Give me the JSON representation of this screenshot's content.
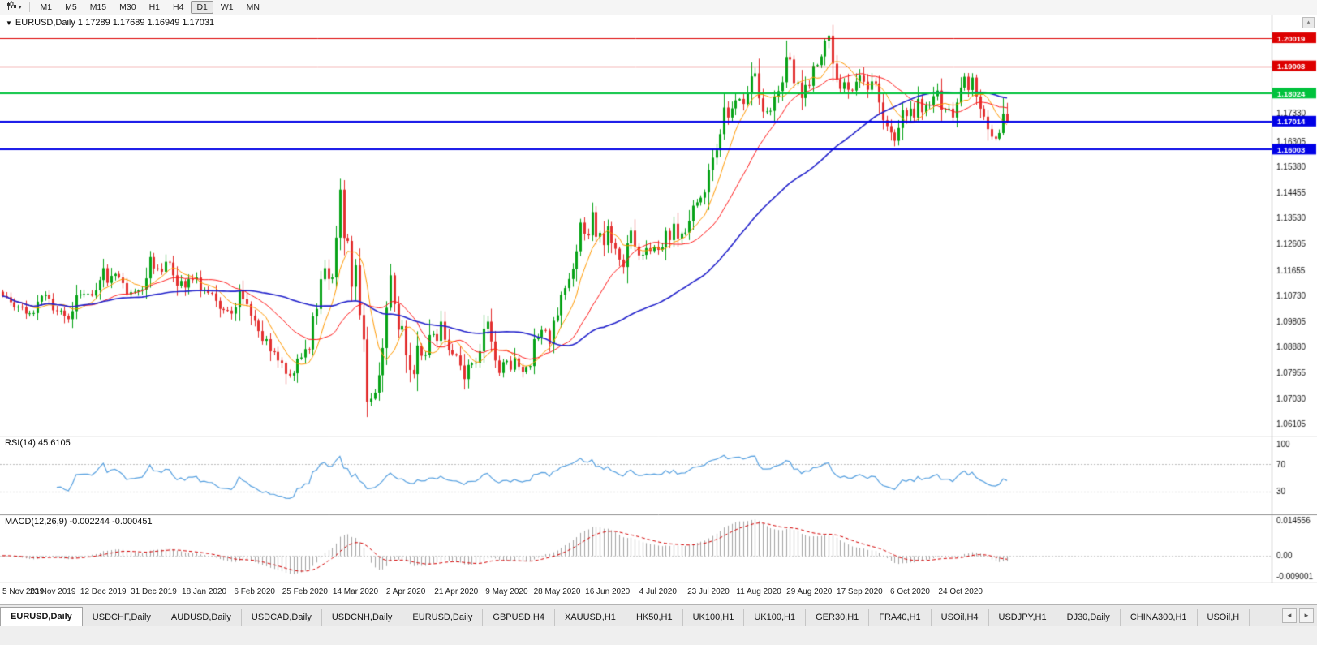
{
  "toolbar": {
    "chart_type_icon": "candlestick-chart-icon",
    "dropdown_glyph": "▾",
    "timeframes": [
      {
        "label": "M1",
        "active": false
      },
      {
        "label": "M5",
        "active": false
      },
      {
        "label": "M15",
        "active": false
      },
      {
        "label": "M30",
        "active": false
      },
      {
        "label": "H1",
        "active": false
      },
      {
        "label": "H4",
        "active": false
      },
      {
        "label": "D1",
        "active": true
      },
      {
        "label": "W1",
        "active": false
      },
      {
        "label": "MN",
        "active": false
      }
    ]
  },
  "main_chart": {
    "collapse_glyph": "▼",
    "title_line": "EURUSD,Daily 1.17289 1.17689 1.16949 1.17031",
    "scroll_glyph": "▴"
  },
  "rsi_panel": {
    "label": "RSI(14) 45.6105"
  },
  "macd_panel": {
    "label": "MACD(12,26,9) -0.002244 -0.000451"
  },
  "tabs": {
    "scroll_left_glyph": "◄",
    "scroll_right_glyph": "►",
    "items": [
      {
        "label": "EURUSD,Daily",
        "active": true
      },
      {
        "label": "USDCHF,Daily",
        "active": false
      },
      {
        "label": "AUDUSD,Daily",
        "active": false
      },
      {
        "label": "USDCAD,Daily",
        "active": false
      },
      {
        "label": "USDCNH,Daily",
        "active": false
      },
      {
        "label": "EURUSD,Daily",
        "active": false
      },
      {
        "label": "GBPUSD,H4",
        "active": false
      },
      {
        "label": "XAUUSD,H1",
        "active": false
      },
      {
        "label": "HK50,H1",
        "active": false
      },
      {
        "label": "UK100,H1",
        "active": false
      },
      {
        "label": "UK100,H1",
        "active": false
      },
      {
        "label": "GER30,H1",
        "active": false
      },
      {
        "label": "FRA40,H1",
        "active": false
      },
      {
        "label": "USOil,H4",
        "active": false
      },
      {
        "label": "USDJPY,H1",
        "active": false
      },
      {
        "label": "DJ30,Daily",
        "active": false
      },
      {
        "label": "CHINA300,H1",
        "active": false
      },
      {
        "label": "USOil,H",
        "active": false
      }
    ]
  },
  "chart_data": {
    "type": "candlestick",
    "symbol": "EURUSD",
    "timeframe": "Daily",
    "ohlc_display": {
      "open": "1.17289",
      "high": "1.17689",
      "low": "1.16949",
      "close": "1.17031"
    },
    "ylim": [
      1.0569,
      1.2084
    ],
    "bar_start_x": 3,
    "bar_spacing": 4.78,
    "bars_per_label": 13,
    "x_labels": [
      "5 Nov 2019",
      "23 Nov 2019",
      "12 Dec 2019",
      "31 Dec 2019",
      "18 Jan 2020",
      "6 Feb 2020",
      "25 Feb 2020",
      "14 Mar 2020",
      "2 Apr 2020",
      "21 Apr 2020",
      "9 May 2020",
      "28 May 2020",
      "16 Jun 2020",
      "4 Jul 2020",
      "23 Jul 2020",
      "11 Aug 2020",
      "29 Aug 2020",
      "17 Sep 2020",
      "6 Oct 2020",
      "24 Oct 2020"
    ],
    "closes": [
      1.1072,
      1.1068,
      1.105,
      1.1032,
      1.1034,
      1.1032,
      1.1009,
      1.101,
      1.1011,
      1.1052,
      1.1073,
      1.1077,
      1.1063,
      1.1021,
      1.1018,
      1.102,
      1.1001,
      1.0989,
      1.1018,
      1.1075,
      1.1078,
      1.108,
      1.108,
      1.1074,
      1.1093,
      1.113,
      1.1173,
      1.112,
      1.1145,
      1.1152,
      1.1139,
      1.1119,
      1.1079,
      1.1086,
      1.1088,
      1.1092,
      1.1096,
      1.1136,
      1.1213,
      1.1172,
      1.1171,
      1.116,
      1.1196,
      1.1193,
      1.1147,
      1.111,
      1.1127,
      1.1103,
      1.1133,
      1.1132,
      1.1139,
      1.109,
      1.1095,
      1.1084,
      1.1082,
      1.1055,
      1.1026,
      1.1022,
      1.102,
      1.1009,
      1.1031,
      1.1094,
      1.1061,
      1.1043,
      1.1002,
      1.0983,
      1.0946,
      1.0911,
      1.0917,
      1.0873,
      1.0871,
      1.084,
      1.0831,
      1.0792,
      1.0786,
      1.0794,
      1.0847,
      1.0851,
      1.0881,
      1.088,
      1.0999,
      1.1026,
      1.1133,
      1.1173,
      1.1134,
      1.1139,
      1.1283,
      1.1456,
      1.1282,
      1.1271,
      1.1106,
      1.1183,
      1.1004,
      1.0916,
      1.0691,
      1.0702,
      1.0724,
      1.0787,
      1.0885,
      1.103,
      1.1147,
      1.1043,
      1.0951,
      1.0964,
      1.0859,
      1.0806,
      1.0791,
      1.0894,
      1.0857,
      1.086,
      1.0932,
      1.0935,
      1.0911,
      1.098,
      1.0915,
      1.0877,
      1.0863,
      1.0858,
      1.0822,
      1.0773,
      1.0824,
      1.0829,
      1.0832,
      1.0873,
      1.0955,
      1.098,
      1.0909,
      1.084,
      1.0795,
      1.0834,
      1.0839,
      1.0807,
      1.0848,
      1.0818,
      1.0799,
      1.0817,
      1.082,
      1.0917,
      1.0924,
      1.095,
      1.0948,
      1.09,
      1.0983,
      1.1003,
      1.1077,
      1.1101,
      1.1134,
      1.117,
      1.1234,
      1.1337,
      1.1297,
      1.1291,
      1.1375,
      1.1286,
      1.13,
      1.1256,
      1.1324,
      1.1264,
      1.1243,
      1.1204,
      1.1177,
      1.1262,
      1.1308,
      1.1251,
      1.1219,
      1.1221,
      1.1245,
      1.1235,
      1.125,
      1.1239,
      1.1248,
      1.1307,
      1.1274,
      1.1333,
      1.128,
      1.1298,
      1.1301,
      1.1343,
      1.1398,
      1.141,
      1.1427,
      1.1446,
      1.1527,
      1.1571,
      1.1598,
      1.1656,
      1.1752,
      1.1716,
      1.1749,
      1.1778,
      1.1783,
      1.1765,
      1.1803,
      1.1864,
      1.1875,
      1.1785,
      1.1737,
      1.1738,
      1.174,
      1.1791,
      1.1811,
      1.1843,
      1.1934,
      1.1925,
      1.184,
      1.1842,
      1.1786,
      1.1833,
      1.183,
      1.1902,
      1.1905,
      1.1936,
      1.1993,
      1.2011,
      1.191,
      1.1854,
      1.1819,
      1.1843,
      1.1816,
      1.1813,
      1.1845,
      1.1867,
      1.1845,
      1.1816,
      1.1846,
      1.1839,
      1.177,
      1.1706,
      1.1685,
      1.1662,
      1.1632,
      1.1678,
      1.1742,
      1.1721,
      1.1748,
      1.1716,
      1.1783,
      1.1735,
      1.176,
      1.1762,
      1.1793,
      1.1813,
      1.1745,
      1.1747,
      1.1748,
      1.1716,
      1.177,
      1.1824,
      1.1863,
      1.1815,
      1.186,
      1.1792,
      1.1748,
      1.1719,
      1.1674,
      1.1647,
      1.164,
      1.166,
      1.1729,
      1.17031
    ],
    "wick_overrides": {
      "74": {
        "low": 1.0778
      },
      "87": {
        "high": 1.1495
      },
      "94": {
        "low": 1.0636
      },
      "213": {
        "high": 1.2014
      },
      "230": {
        "low": 1.1612
      },
      "259": {
        "high": 1.17689,
        "low": 1.16949
      }
    },
    "candle_colors": {
      "up": "#07a318",
      "down": "#e33030"
    },
    "y_ticks": [
      "1.17330",
      "1.16305",
      "1.15380",
      "1.14455",
      "1.13530",
      "1.12605",
      "1.11655",
      "1.10730",
      "1.09805",
      "1.08880",
      "1.07955",
      "1.07030",
      "1.06105"
    ],
    "hlines": [
      {
        "price": 1.20019,
        "label": "1.20019",
        "color": "#dd0000",
        "width": 1
      },
      {
        "price": 1.19008,
        "label": "1.19008",
        "color": "#dd0000",
        "width": 1
      },
      {
        "price": 1.18024,
        "label": "1.18024",
        "color": "#00c23c",
        "width": 2
      },
      {
        "price": 1.17014,
        "label": "1.17014",
        "color": "#0000e6",
        "width": 2
      },
      {
        "price": 1.16003,
        "label": "1.16003",
        "color": "#0000e6",
        "width": 2
      }
    ],
    "moving_averages": [
      {
        "period": 8,
        "color": "#ff9900",
        "width": 1
      },
      {
        "period": 21,
        "color": "#ff1a1a",
        "width": 1
      },
      {
        "period": 55,
        "color": "#2323cc",
        "width": 1.6
      }
    ],
    "indicators": {
      "rsi": {
        "name": "RSI(14)",
        "value_label": "45.6105",
        "period": 14,
        "levels": [
          70,
          30
        ],
        "axis_labels": [
          "100",
          "70",
          "30"
        ],
        "line_color": "#56a0e0"
      },
      "macd": {
        "name": "MACD(12,26,9)",
        "values_label": "-0.002244 -0.000451",
        "fast": 12,
        "slow": 26,
        "signal": 9,
        "ylim": [
          -0.009001,
          0.014556
        ],
        "axis_labels": [
          "0.014556",
          "0.00",
          "-0.009001"
        ],
        "histogram_color": "#a3a3a3",
        "signal_color": "#d40000"
      }
    }
  }
}
